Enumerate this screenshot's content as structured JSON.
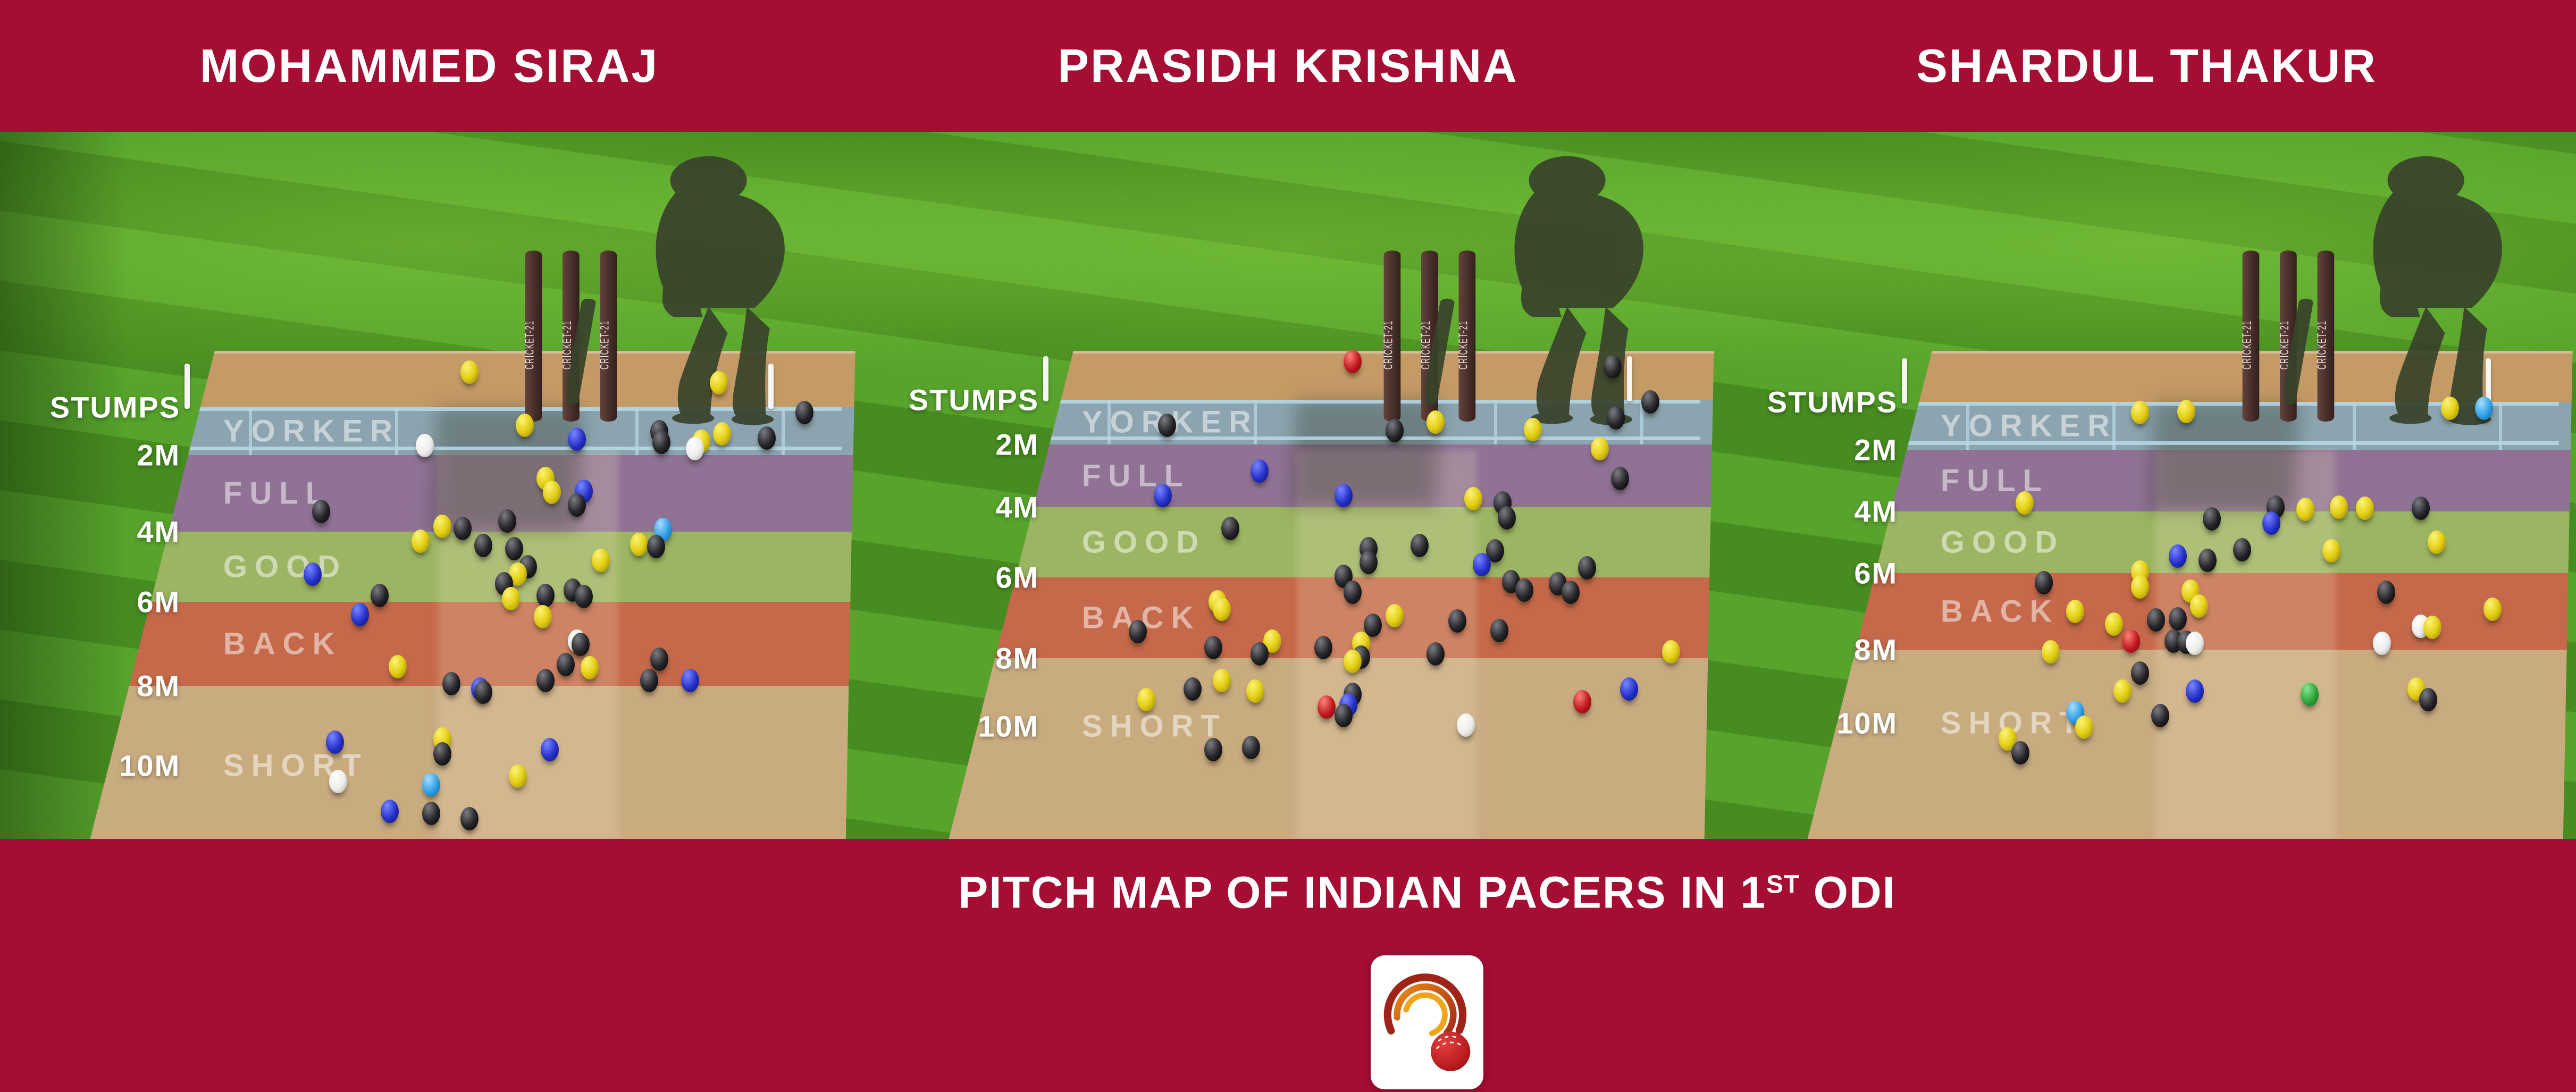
{
  "header": {
    "players": [
      "MOHAMMED SIRAJ",
      "PRASIDH KRISHNA",
      "SHARDUL THAKUR"
    ]
  },
  "footer": {
    "title_before": "PITCH MAP OF INDIAN PACERS IN 1",
    "title_sup": "ST",
    "title_after": " ODI",
    "logo": "cricket-brand-logo"
  },
  "map_labels": {
    "distance": [
      "STUMPS",
      "2M",
      "4M",
      "6M",
      "8M",
      "10M"
    ],
    "zones": [
      "YORKER",
      "FULL",
      "GOOD",
      "BACK",
      "SHORT"
    ],
    "stumps_text": "CRICKET-21"
  },
  "colors": {
    "banner": "#a60d33",
    "grass_light": "#57a32c",
    "grass_dark": "#478c20",
    "pitch_sand": "#c49a66",
    "short_sand": "#c9ab80",
    "zone_yorker": "#8ca4af",
    "zone_full": "#8f7294",
    "zone_good": "#9cb563",
    "zone_back": "#c5694a",
    "crease": "#b8d9e8",
    "balls": {
      "k": "#26262b",
      "y": "#e3cf14",
      "b": "#2430c8",
      "lb": "#2f9fe6",
      "w": "#ececea",
      "r": "#c0181f",
      "g": "#2ea43a"
    }
  },
  "chart_data": {
    "type": "scatter",
    "title": "Pitch map of Indian pacers in 1st ODI",
    "ball_color_key": {
      "k": "black",
      "y": "yellow",
      "b": "dark-blue",
      "lb": "light-blue",
      "w": "white",
      "r": "red",
      "g": "green"
    },
    "coordinates_note": "x = % of panel width, y = % of image height; lines give y% of STUMPS/2M/4M/6M/8M/10M marks per panel",
    "panels": [
      {
        "bowler": "MOHAMMED SIRAJ",
        "lines": {
          "stumps": 38.3,
          "2m": 42.8,
          "4m": 50.0,
          "6m": 56.6,
          "8m": 64.5,
          "10m": 72.0
        },
        "balls": [
          [
            54.7,
            35.0,
            "y"
          ],
          [
            83.7,
            36.0,
            "y"
          ],
          [
            93.7,
            38.8,
            "k"
          ],
          [
            61.1,
            40.0,
            "y"
          ],
          [
            67.2,
            41.3,
            "b"
          ],
          [
            76.8,
            40.6,
            "k"
          ],
          [
            77.0,
            41.6,
            "k"
          ],
          [
            84.1,
            40.8,
            "y"
          ],
          [
            81.7,
            41.5,
            "y"
          ],
          [
            89.3,
            41.2,
            "k"
          ],
          [
            80.9,
            42.2,
            "w"
          ],
          [
            49.5,
            41.9,
            "w"
          ],
          [
            63.5,
            45.0,
            "y"
          ],
          [
            64.3,
            46.3,
            "y"
          ],
          [
            68.0,
            46.2,
            "b"
          ],
          [
            67.2,
            47.5,
            "k"
          ],
          [
            37.4,
            48.1,
            "k"
          ],
          [
            59.1,
            49.0,
            "k"
          ],
          [
            51.5,
            49.5,
            "y"
          ],
          [
            53.9,
            49.7,
            "k"
          ],
          [
            77.2,
            49.8,
            "lb"
          ],
          [
            49.0,
            50.9,
            "y"
          ],
          [
            74.4,
            51.2,
            "y"
          ],
          [
            76.4,
            51.4,
            "k"
          ],
          [
            56.3,
            51.3,
            "k"
          ],
          [
            59.9,
            51.6,
            "k"
          ],
          [
            70.0,
            52.7,
            "y"
          ],
          [
            61.5,
            53.3,
            "k"
          ],
          [
            60.3,
            54.0,
            "y"
          ],
          [
            58.7,
            54.9,
            "k"
          ],
          [
            36.4,
            54.0,
            "b"
          ],
          [
            44.2,
            56.0,
            "k"
          ],
          [
            59.5,
            56.3,
            "y"
          ],
          [
            63.5,
            56.0,
            "k"
          ],
          [
            66.7,
            55.5,
            "k"
          ],
          [
            68.0,
            56.1,
            "k"
          ],
          [
            41.9,
            57.8,
            "b"
          ],
          [
            63.2,
            58.0,
            "y"
          ],
          [
            67.2,
            60.3,
            "w"
          ],
          [
            67.6,
            60.6,
            "k"
          ],
          [
            76.8,
            62.0,
            "k"
          ],
          [
            65.9,
            62.5,
            "k"
          ],
          [
            68.7,
            62.8,
            "y"
          ],
          [
            46.3,
            62.7,
            "y"
          ],
          [
            52.6,
            64.3,
            "k"
          ],
          [
            55.9,
            64.8,
            "b"
          ],
          [
            56.3,
            65.1,
            "k"
          ],
          [
            63.5,
            64.0,
            "k"
          ],
          [
            75.6,
            64.0,
            "k"
          ],
          [
            80.4,
            64.0,
            "b"
          ],
          [
            39.0,
            69.8,
            "b"
          ],
          [
            51.5,
            69.5,
            "y"
          ],
          [
            51.5,
            70.9,
            "k"
          ],
          [
            64.0,
            70.5,
            "b"
          ],
          [
            39.4,
            73.5,
            "w"
          ],
          [
            50.2,
            73.8,
            "lb"
          ],
          [
            60.3,
            73.0,
            "y"
          ],
          [
            45.4,
            76.3,
            "b"
          ],
          [
            50.2,
            76.5,
            "k"
          ],
          [
            54.7,
            77.0,
            "k"
          ]
        ]
      },
      {
        "bowler": "PRASIDH KRISHNA",
        "lines": {
          "stumps": 37.6,
          "2m": 41.8,
          "4m": 47.7,
          "6m": 54.3,
          "8m": 61.9,
          "10m": 68.3
        },
        "balls": [
          [
            57.5,
            34.0,
            "r"
          ],
          [
            87.8,
            34.5,
            "k"
          ],
          [
            92.2,
            37.8,
            "k"
          ],
          [
            35.9,
            40.0,
            "k"
          ],
          [
            62.4,
            40.5,
            "k"
          ],
          [
            67.2,
            39.7,
            "y"
          ],
          [
            78.5,
            40.4,
            "y"
          ],
          [
            88.2,
            39.3,
            "k"
          ],
          [
            86.3,
            42.2,
            "y"
          ],
          [
            46.7,
            44.3,
            "b"
          ],
          [
            35.4,
            46.6,
            "b"
          ],
          [
            56.5,
            46.6,
            "b"
          ],
          [
            71.6,
            46.9,
            "y"
          ],
          [
            75.0,
            47.3,
            "k"
          ],
          [
            75.5,
            48.7,
            "k"
          ],
          [
            88.7,
            45.0,
            "k"
          ],
          [
            43.3,
            49.7,
            "k"
          ],
          [
            59.4,
            51.6,
            "k"
          ],
          [
            59.4,
            52.9,
            "k"
          ],
          [
            65.3,
            51.3,
            "k"
          ],
          [
            74.1,
            51.8,
            "k"
          ],
          [
            72.6,
            53.1,
            "b"
          ],
          [
            84.8,
            53.4,
            "k"
          ],
          [
            76.0,
            54.7,
            "k"
          ],
          [
            81.4,
            54.9,
            "k"
          ],
          [
            56.5,
            54.2,
            "k"
          ],
          [
            41.8,
            56.6,
            "y"
          ],
          [
            57.5,
            55.7,
            "k"
          ],
          [
            77.5,
            55.5,
            "k"
          ],
          [
            82.9,
            55.7,
            "k"
          ],
          [
            42.3,
            57.3,
            "y"
          ],
          [
            62.4,
            57.9,
            "y"
          ],
          [
            59.9,
            58.8,
            "k"
          ],
          [
            69.7,
            58.4,
            "k"
          ],
          [
            32.5,
            59.4,
            "k"
          ],
          [
            74.6,
            59.3,
            "k"
          ],
          [
            48.2,
            60.3,
            "y"
          ],
          [
            41.3,
            60.9,
            "k"
          ],
          [
            58.5,
            60.5,
            "y"
          ],
          [
            46.7,
            61.5,
            "k"
          ],
          [
            54.1,
            60.9,
            "k"
          ],
          [
            58.5,
            61.8,
            "k"
          ],
          [
            67.2,
            61.5,
            "k"
          ],
          [
            57.5,
            62.2,
            "y"
          ],
          [
            94.6,
            61.3,
            "y"
          ],
          [
            42.3,
            64.0,
            "y"
          ],
          [
            38.9,
            64.8,
            "k"
          ],
          [
            46.2,
            65.0,
            "y"
          ],
          [
            33.5,
            65.8,
            "y"
          ],
          [
            57.5,
            65.3,
            "k"
          ],
          [
            54.5,
            66.5,
            "r"
          ],
          [
            57.0,
            66.3,
            "b"
          ],
          [
            56.5,
            67.3,
            "k"
          ],
          [
            84.3,
            66.0,
            "r"
          ],
          [
            89.7,
            64.8,
            "b"
          ],
          [
            70.7,
            68.2,
            "w"
          ],
          [
            41.3,
            70.5,
            "k"
          ],
          [
            45.7,
            70.3,
            "k"
          ]
        ]
      },
      {
        "bowler": "SHARDUL THAKUR",
        "lines": {
          "stumps": 37.8,
          "2m": 42.3,
          "4m": 48.1,
          "6m": 53.9,
          "8m": 61.1,
          "10m": 68.0
        },
        "balls": [
          [
            49.2,
            38.8,
            "y"
          ],
          [
            54.6,
            38.7,
            "y"
          ],
          [
            85.3,
            38.4,
            "y"
          ],
          [
            89.3,
            38.4,
            "lb"
          ],
          [
            35.8,
            47.3,
            "y"
          ],
          [
            65.0,
            47.7,
            "k"
          ],
          [
            68.5,
            47.9,
            "y"
          ],
          [
            72.4,
            47.7,
            "y"
          ],
          [
            75.4,
            47.8,
            "y"
          ],
          [
            81.9,
            47.8,
            "k"
          ],
          [
            57.6,
            48.8,
            "k"
          ],
          [
            64.5,
            49.2,
            "b"
          ],
          [
            61.1,
            51.7,
            "k"
          ],
          [
            53.6,
            52.3,
            "b"
          ],
          [
            57.1,
            52.7,
            "k"
          ],
          [
            71.5,
            51.8,
            "y"
          ],
          [
            83.8,
            51.0,
            "y"
          ],
          [
            38.0,
            54.8,
            "k"
          ],
          [
            49.2,
            53.8,
            "y"
          ],
          [
            49.2,
            55.2,
            "y"
          ],
          [
            55.1,
            55.6,
            "y"
          ],
          [
            77.9,
            55.7,
            "k"
          ],
          [
            41.7,
            57.5,
            "y"
          ],
          [
            56.1,
            57.0,
            "y"
          ],
          [
            51.1,
            58.3,
            "k"
          ],
          [
            53.6,
            58.2,
            "k"
          ],
          [
            46.2,
            58.7,
            "y"
          ],
          [
            90.3,
            57.3,
            "y"
          ],
          [
            81.9,
            58.9,
            "w"
          ],
          [
            83.3,
            59.0,
            "y"
          ],
          [
            48.2,
            60.3,
            "r"
          ],
          [
            53.1,
            60.3,
            "k"
          ],
          [
            54.6,
            60.4,
            "k"
          ],
          [
            55.6,
            60.5,
            "w"
          ],
          [
            77.4,
            60.5,
            "w"
          ],
          [
            38.8,
            61.3,
            "y"
          ],
          [
            49.2,
            63.3,
            "k"
          ],
          [
            47.2,
            65.0,
            "y"
          ],
          [
            55.6,
            65.0,
            "b"
          ],
          [
            69.0,
            65.3,
            "g"
          ],
          [
            81.4,
            64.8,
            "y"
          ],
          [
            82.8,
            65.8,
            "k"
          ],
          [
            41.7,
            67.0,
            "lb"
          ],
          [
            51.6,
            67.3,
            "k"
          ],
          [
            42.7,
            68.4,
            "y"
          ],
          [
            33.8,
            69.5,
            "y"
          ],
          [
            35.3,
            70.8,
            "k"
          ]
        ]
      }
    ]
  }
}
